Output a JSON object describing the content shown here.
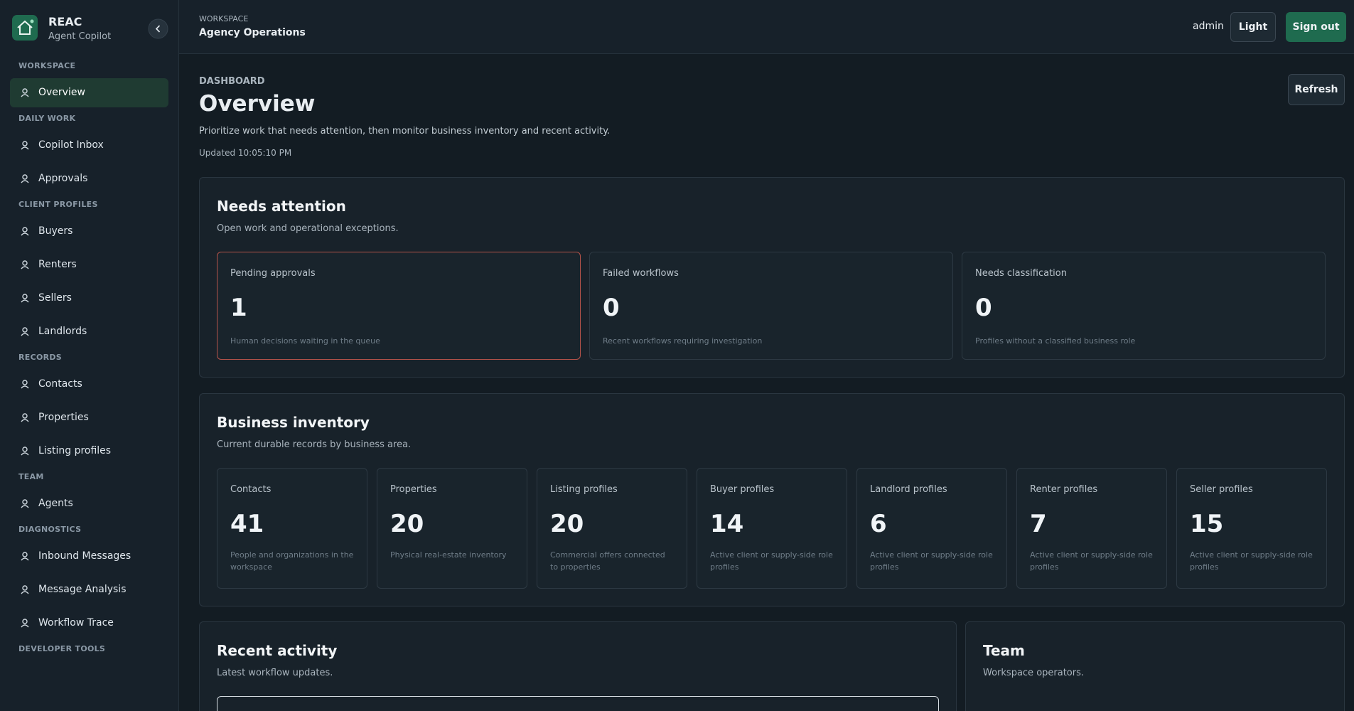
{
  "sidebar": {
    "brand": "REAC",
    "subtitle": "Agent Copilot",
    "active": "Overview",
    "sections": [
      {
        "title": "WORKSPACE",
        "items": [
          "Overview"
        ]
      },
      {
        "title": "DAILY WORK",
        "items": [
          "Copilot Inbox",
          "Approvals"
        ]
      },
      {
        "title": "CLIENT PROFILES",
        "items": [
          "Buyers",
          "Renters",
          "Sellers",
          "Landlords"
        ]
      },
      {
        "title": "RECORDS",
        "items": [
          "Contacts",
          "Properties",
          "Listing profiles"
        ]
      },
      {
        "title": "TEAM",
        "items": [
          "Agents"
        ]
      },
      {
        "title": "DIAGNOSTICS",
        "items": [
          "Inbound Messages",
          "Message Analysis",
          "Workflow Trace"
        ]
      },
      {
        "title": "DEVELOPER TOOLS",
        "items": []
      }
    ]
  },
  "header": {
    "eyebrow": "WORKSPACE",
    "title": "Agency Operations",
    "user": "admin",
    "theme_button": "Light",
    "sign_out": "Sign out"
  },
  "page": {
    "eyebrow": "DASHBOARD",
    "title": "Overview",
    "description": "Prioritize work that needs attention, then monitor business inventory and recent activity.",
    "updated": "Updated 10:05:10 PM",
    "refresh": "Refresh"
  },
  "needs_attention": {
    "title": "Needs attention",
    "subtitle": "Open work and operational exceptions.",
    "cards": [
      {
        "label": "Pending approvals",
        "value": 1,
        "caption": "Human decisions waiting in the queue"
      },
      {
        "label": "Failed workflows",
        "value": 0,
        "caption": "Recent workflows requiring investigation"
      },
      {
        "label": "Needs classification",
        "value": 0,
        "caption": "Profiles without a classified business role"
      }
    ]
  },
  "inventory": {
    "title": "Business inventory",
    "subtitle": "Current durable records by business area.",
    "cards": [
      {
        "label": "Contacts",
        "value": 41,
        "caption": "People and organizations in the workspace"
      },
      {
        "label": "Properties",
        "value": 20,
        "caption": "Physical real-estate inventory"
      },
      {
        "label": "Listing profiles",
        "value": 20,
        "caption": "Commercial offers connected to properties"
      },
      {
        "label": "Buyer profiles",
        "value": 14,
        "caption": "Active client or supply-side role profiles"
      },
      {
        "label": "Landlord profiles",
        "value": 6,
        "caption": "Active client or supply-side role profiles"
      },
      {
        "label": "Renter profiles",
        "value": 7,
        "caption": "Active client or supply-side role profiles"
      },
      {
        "label": "Seller profiles",
        "value": 15,
        "caption": "Active client or supply-side role profiles"
      }
    ]
  },
  "recent_activity": {
    "title": "Recent activity",
    "subtitle": "Latest workflow updates."
  },
  "team": {
    "title": "Team",
    "subtitle": "Workspace operators."
  }
}
